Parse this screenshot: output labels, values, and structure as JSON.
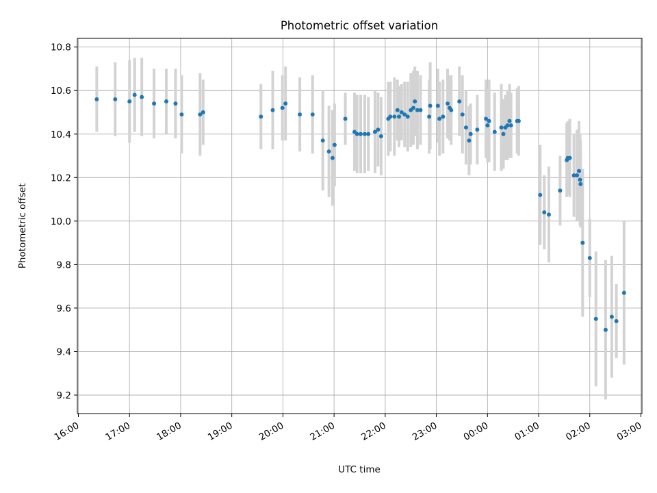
{
  "chart_data": {
    "type": "scatter",
    "title": "Photometric offset variation",
    "xlabel": "UTC time",
    "ylabel": "Photometric offset",
    "x_unit": "hours since 16:00 UTC",
    "xlim": [
      -0.02,
      11.02
    ],
    "ylim": [
      9.115,
      10.84
    ],
    "x_tick_labels": [
      "16:00",
      "17:00",
      "18:00",
      "19:00",
      "20:00",
      "21:00",
      "22:00",
      "23:00",
      "00:00",
      "01:00",
      "02:00",
      "03:00"
    ],
    "y_ticks": [
      9.2,
      9.4,
      9.6,
      9.8,
      10.0,
      10.2,
      10.4,
      10.6,
      10.8
    ],
    "y_tick_labels": [
      "9.2",
      "9.4",
      "9.6",
      "9.8",
      "10.0",
      "10.2",
      "10.4",
      "10.6",
      "10.8"
    ],
    "grid": true,
    "point_color": "#1f77b4",
    "errorbar_color": "#d3d3d3",
    "series": [
      {
        "points": [
          [
            0.36,
            10.56,
            0.15
          ],
          [
            0.72,
            10.56,
            0.17
          ],
          [
            1.0,
            10.55,
            0.19
          ],
          [
            1.1,
            10.58,
            0.17
          ],
          [
            1.24,
            10.57,
            0.18
          ],
          [
            1.48,
            10.54,
            0.16
          ],
          [
            1.72,
            10.55,
            0.15
          ],
          [
            1.9,
            10.54,
            0.16
          ],
          [
            2.02,
            10.49,
            0.18
          ],
          [
            2.38,
            10.49,
            0.19
          ],
          [
            2.44,
            10.5,
            0.15
          ],
          [
            3.57,
            10.48,
            0.15
          ],
          [
            3.8,
            10.51,
            0.18
          ],
          [
            3.99,
            10.52,
            0.15
          ],
          [
            4.05,
            10.54,
            0.17
          ],
          [
            4.33,
            10.49,
            0.17
          ],
          [
            4.58,
            10.49,
            0.18
          ],
          [
            4.78,
            10.37,
            0.23
          ],
          [
            4.9,
            10.32,
            0.21
          ],
          [
            4.97,
            10.29,
            0.22
          ],
          [
            5.01,
            10.35,
            0.19
          ],
          [
            5.22,
            10.47,
            0.12
          ],
          [
            5.4,
            10.41,
            0.18
          ],
          [
            5.45,
            10.4,
            0.18
          ],
          [
            5.52,
            10.4,
            0.18
          ],
          [
            5.6,
            10.4,
            0.18
          ],
          [
            5.67,
            10.4,
            0.17
          ],
          [
            5.8,
            10.41,
            0.19
          ],
          [
            5.86,
            10.42,
            0.17
          ],
          [
            5.92,
            10.39,
            0.18
          ],
          [
            6.06,
            10.47,
            0.17
          ],
          [
            6.1,
            10.48,
            0.16
          ],
          [
            6.18,
            10.48,
            0.18
          ],
          [
            6.24,
            10.51,
            0.14
          ],
          [
            6.27,
            10.48,
            0.14
          ],
          [
            6.32,
            10.5,
            0.13
          ],
          [
            6.38,
            10.49,
            0.15
          ],
          [
            6.44,
            10.48,
            0.16
          ],
          [
            6.5,
            10.51,
            0.17
          ],
          [
            6.55,
            10.52,
            0.17
          ],
          [
            6.58,
            10.55,
            0.16
          ],
          [
            6.63,
            10.51,
            0.18
          ],
          [
            6.69,
            10.51,
            0.16
          ],
          [
            6.86,
            10.48,
            0.17
          ],
          [
            6.88,
            10.53,
            0.2
          ],
          [
            7.03,
            10.53,
            0.17
          ],
          [
            7.06,
            10.47,
            0.17
          ],
          [
            7.13,
            10.48,
            0.17
          ],
          [
            7.22,
            10.54,
            0.16
          ],
          [
            7.26,
            10.52,
            0.15
          ],
          [
            7.29,
            10.51,
            0.16
          ],
          [
            7.45,
            10.55,
            0.16
          ],
          [
            7.51,
            10.49,
            0.18
          ],
          [
            7.58,
            10.43,
            0.17
          ],
          [
            7.64,
            10.37,
            0.16
          ],
          [
            7.67,
            10.4,
            0.14
          ],
          [
            7.8,
            10.42,
            0.16
          ],
          [
            7.97,
            10.47,
            0.18
          ],
          [
            8.0,
            10.44,
            0.17
          ],
          [
            8.03,
            10.46,
            0.19
          ],
          [
            8.14,
            10.41,
            0.18
          ],
          [
            8.27,
            10.43,
            0.2
          ],
          [
            8.31,
            10.4,
            0.16
          ],
          [
            8.35,
            10.43,
            0.15
          ],
          [
            8.39,
            10.44,
            0.16
          ],
          [
            8.43,
            10.46,
            0.17
          ],
          [
            8.46,
            10.44,
            0.15
          ],
          [
            8.58,
            10.46,
            0.15
          ],
          [
            8.61,
            10.46,
            0.16
          ],
          [
            9.03,
            10.12,
            0.23
          ],
          [
            9.11,
            10.04,
            0.17
          ],
          [
            9.2,
            10.03,
            0.22
          ],
          [
            9.42,
            10.14,
            0.16
          ],
          [
            9.55,
            10.28,
            0.17
          ],
          [
            9.57,
            10.29,
            0.17
          ],
          [
            9.61,
            10.29,
            0.18
          ],
          [
            9.69,
            10.21,
            0.19
          ],
          [
            9.75,
            10.21,
            0.21
          ],
          [
            9.79,
            10.23,
            0.23
          ],
          [
            9.81,
            10.19,
            0.21
          ],
          [
            9.82,
            10.17,
            0.2
          ],
          [
            9.86,
            9.9,
            0.34
          ],
          [
            10.0,
            9.83,
            0.18
          ],
          [
            10.12,
            9.55,
            0.31
          ],
          [
            10.31,
            9.5,
            0.32
          ],
          [
            10.43,
            9.56,
            0.28
          ],
          [
            10.52,
            9.54,
            0.17
          ],
          [
            10.67,
            9.67,
            0.33
          ]
        ]
      }
    ]
  }
}
